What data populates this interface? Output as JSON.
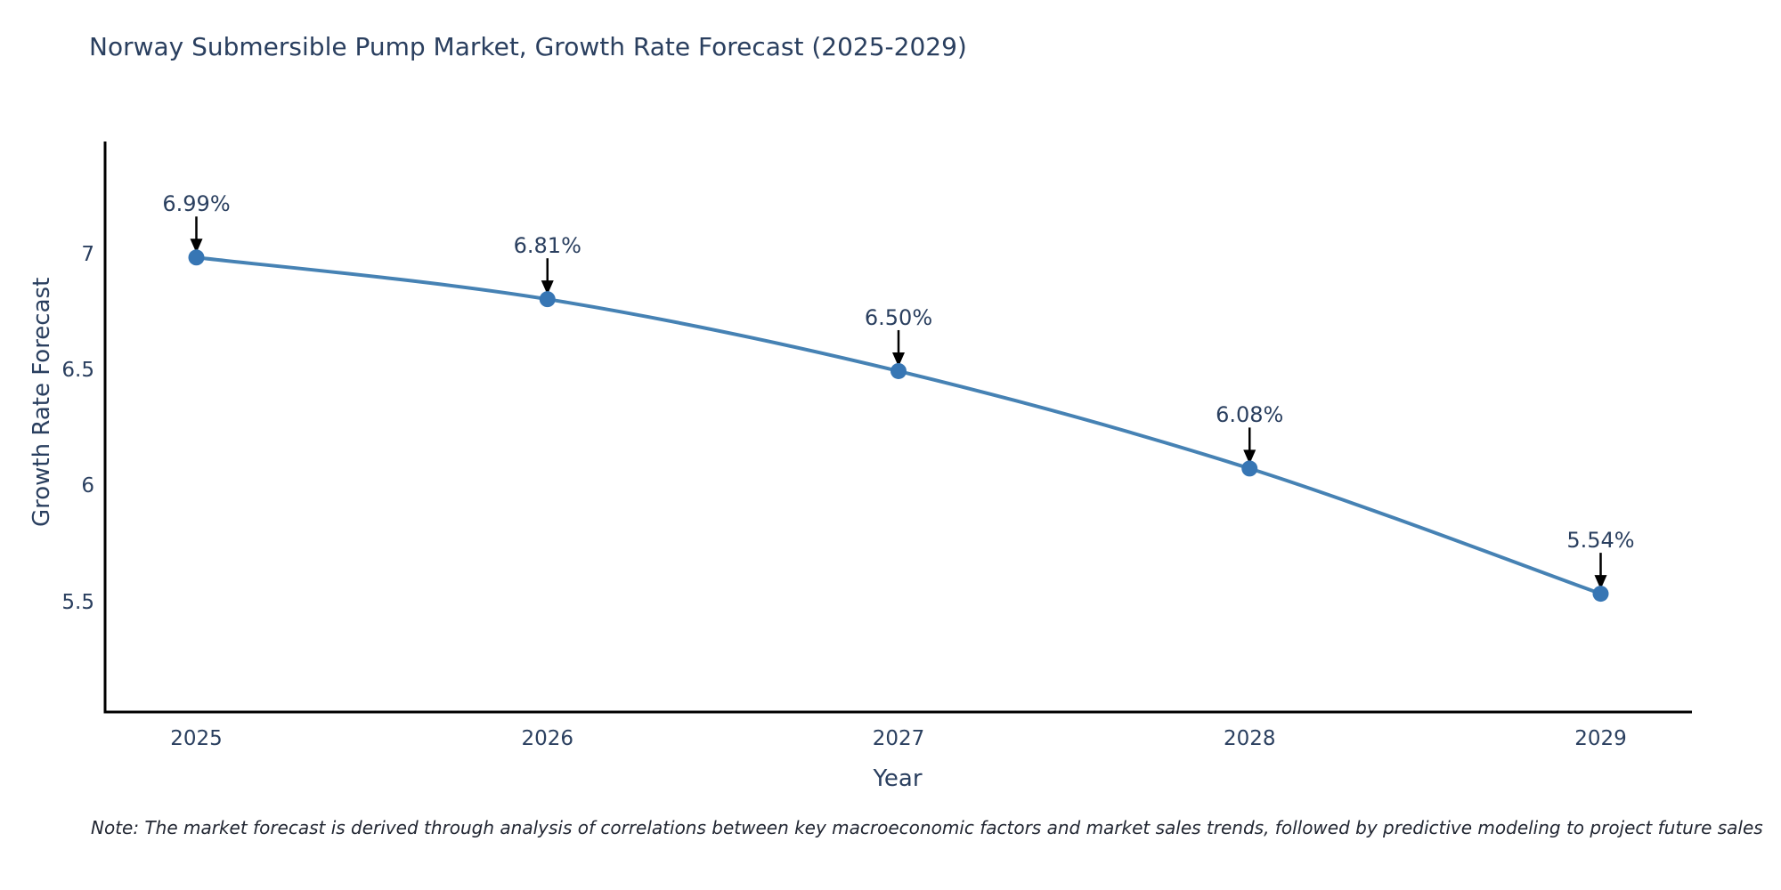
{
  "chart": {
    "title": "Norway Submersible Pump Market, Growth Rate Forecast (2025-2029)",
    "xlabel": "Year",
    "ylabel": "Growth Rate Forecast",
    "note": "Note: The market forecast is derived through analysis of correlations between key macroeconomic factors and market sales trends, followed by predictive modeling to project future sales"
  },
  "chart_data": {
    "type": "line",
    "title": "Norway Submersible Pump Market, Growth Rate Forecast (2025-2029)",
    "xlabel": "Year",
    "ylabel": "Growth Rate Forecast",
    "x": [
      2025,
      2026,
      2027,
      2028,
      2029
    ],
    "x_tick_labels": [
      "2025",
      "2026",
      "2027",
      "2028",
      "2029"
    ],
    "series": [
      {
        "name": "Growth Rate Forecast",
        "values": [
          6.99,
          6.81,
          6.5,
          6.08,
          5.54
        ]
      }
    ],
    "point_labels": [
      "6.99%",
      "6.81%",
      "6.50%",
      "6.08%",
      "5.54%"
    ],
    "y_ticks": [
      7,
      6.5,
      6,
      5.5
    ],
    "y_tick_labels": [
      "7",
      "6.5",
      "6",
      "5.5"
    ],
    "xlim": [
      2024.74,
      2029.26
    ],
    "ylim": [
      5.03,
      7.49
    ],
    "grid": false,
    "legend_position": "none",
    "curve": "spline",
    "line_color": "#4682b4",
    "marker_color": "#3776b4",
    "axis_color": "#000000",
    "text_color": "#2a3f5f",
    "arrow_color": "#000000"
  }
}
